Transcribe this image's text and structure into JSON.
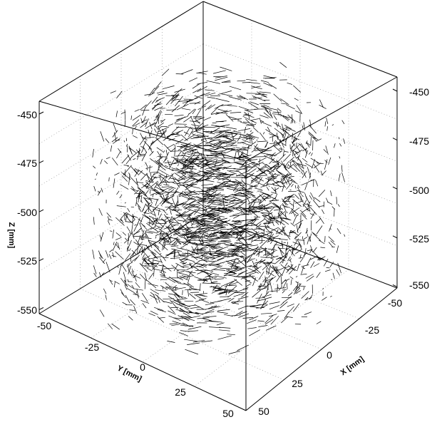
{
  "chart_data": {
    "type": "vector-field-3d",
    "xlabel": "X [mm]",
    "ylabel": "Y [mm]",
    "zlabel": "Z [mm]",
    "xlim": [
      -50,
      50
    ],
    "ylim": [
      -50,
      50
    ],
    "zlim": [
      -560,
      -440
    ],
    "x_ticks": [
      "-50",
      "-25",
      "0",
      "25",
      "50"
    ],
    "y_ticks": [
      "-50",
      "-25",
      "0",
      "25",
      "50"
    ],
    "z_ticks_left": [
      "-450",
      "-475",
      "-500",
      "-525",
      "-550"
    ],
    "z_ticks_right": [
      "-450",
      "-475",
      "-500",
      "-525",
      "-550"
    ],
    "field": "swirling flow about the vertical Z axis, dense near center",
    "grid": true,
    "colors": {
      "vectors": "#000000",
      "box": "#000000",
      "grid": "#888888"
    }
  }
}
